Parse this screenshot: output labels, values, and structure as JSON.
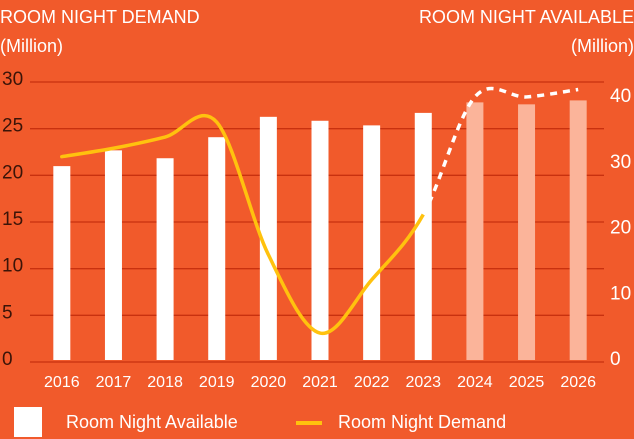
{
  "chart_data": {
    "type": "bar_line",
    "title_left": "ROOM NIGHT DEMAND",
    "unit_left": "(Million)",
    "title_right": "ROOM NIGHT AVAILABLE",
    "unit_right": "(Million)",
    "categories": [
      "2016",
      "2017",
      "2018",
      "2019",
      "2020",
      "2021",
      "2022",
      "2023",
      "2024",
      "2025",
      "2026"
    ],
    "ylim": [
      0,
      30
    ],
    "yticks": [
      0,
      5,
      10,
      15,
      20,
      25,
      30
    ],
    "y2lim": [
      0,
      42.3
    ],
    "y2ticks": [
      0,
      10,
      20,
      30,
      40
    ],
    "grid": true,
    "series": [
      {
        "name": "Room Night Available",
        "kind": "bar",
        "axis": "y2",
        "color": "#ffffff",
        "colors": [
          "#ffffff",
          "#ffffff",
          "#ffffff",
          "#ffffff",
          "#ffffff",
          "#ffffff",
          "#ffffff",
          "#ffffff",
          "#fbb49a",
          "#fbb49a",
          "#fbb49a"
        ],
        "values": [
          29.5,
          31.9,
          30.7,
          33.9,
          37.0,
          36.4,
          35.7,
          37.6,
          39.2,
          38.9,
          39.5
        ]
      },
      {
        "name": "Room Night Demand",
        "kind": "line",
        "axis": "y",
        "color": "#ffc20e",
        "dashed_from": 7,
        "dash_color": "#ffffff",
        "values": [
          22.0,
          22.9,
          24.1,
          25.7,
          11.5,
          3.1,
          8.8,
          15.8,
          28.4,
          28.4,
          29.2
        ]
      }
    ]
  }
}
